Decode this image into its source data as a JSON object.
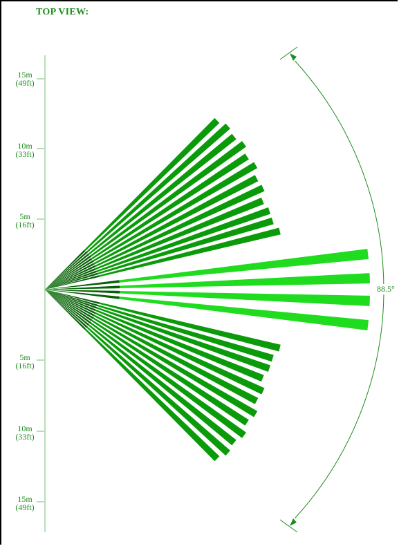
{
  "title": "TOP VIEW:",
  "angle_label": "88.5°",
  "colors": {
    "accent": "#1e8c1e",
    "beam_dark": "#0a9a0a",
    "beam_light": "#1fdc1f",
    "beam_root": "#0b5e0b",
    "axis": "#6fbf6f",
    "frame": "#000000"
  },
  "scale": {
    "top": [
      {
        "m": "15m",
        "ft": "(49ft)"
      },
      {
        "m": "10m",
        "ft": "(33ft)"
      },
      {
        "m": "5m",
        "ft": "(16ft)"
      }
    ],
    "bottom": [
      {
        "m": "5m",
        "ft": "(16ft)"
      },
      {
        "m": "10m",
        "ft": "(33ft)"
      },
      {
        "m": "15m",
        "ft": "(49ft)"
      }
    ]
  }
}
